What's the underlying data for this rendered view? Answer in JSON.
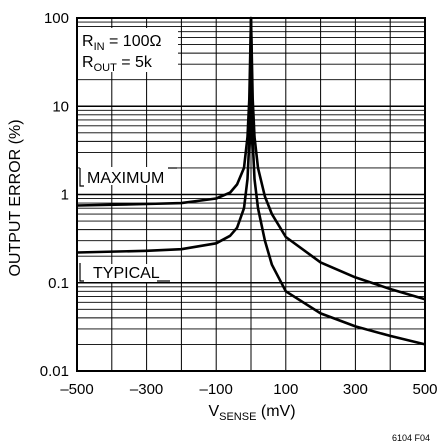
{
  "chart_data": {
    "type": "line",
    "xlabel": {
      "main": "V",
      "sub": "SENSE",
      "unit": " (mV)"
    },
    "ylabel": "OUTPUT ERROR (%)",
    "xlim": [
      -500,
      500
    ],
    "ylim": [
      0.01,
      100
    ],
    "yscale": "log",
    "grid": true,
    "x_ticks": [
      -500,
      -300,
      -100,
      100,
      300,
      500
    ],
    "x_tick_labels": [
      "–500",
      "–300",
      "–100",
      "100",
      "300",
      "500"
    ],
    "y_ticks": [
      100,
      10,
      1,
      0.1,
      0.01
    ],
    "y_tick_labels": [
      "100",
      "10",
      "1",
      "0.1",
      "0.01"
    ],
    "legend_box": {
      "line1": {
        "main": "R",
        "sub": "IN",
        "rest": " = 100Ω"
      },
      "line2": {
        "main": "R",
        "sub": "OUT",
        "rest": " = 5k"
      }
    },
    "series": [
      {
        "name": "MAXIMUM",
        "x": [
          -500,
          -300,
          -200,
          -100,
          -60,
          -40,
          -20,
          -10,
          -5,
          0,
          5,
          10,
          20,
          40,
          60,
          100,
          200,
          300,
          400,
          500
        ],
        "y": [
          0.75,
          0.78,
          0.8,
          0.9,
          1.05,
          1.3,
          2.0,
          4.5,
          12,
          100,
          12,
          4.5,
          2.0,
          0.95,
          0.6,
          0.33,
          0.17,
          0.115,
          0.085,
          0.065
        ]
      },
      {
        "name": "TYPICAL",
        "x": [
          -500,
          -300,
          -200,
          -100,
          -60,
          -40,
          -20,
          -10,
          -5,
          0,
          5,
          10,
          20,
          40,
          60,
          100,
          200,
          300,
          400,
          500
        ],
        "y": [
          0.22,
          0.23,
          0.24,
          0.28,
          0.34,
          0.42,
          0.7,
          1.5,
          4.0,
          100,
          4.0,
          1.5,
          0.7,
          0.3,
          0.16,
          0.08,
          0.045,
          0.032,
          0.025,
          0.02
        ]
      }
    ]
  },
  "figure_id": "6104 F04"
}
